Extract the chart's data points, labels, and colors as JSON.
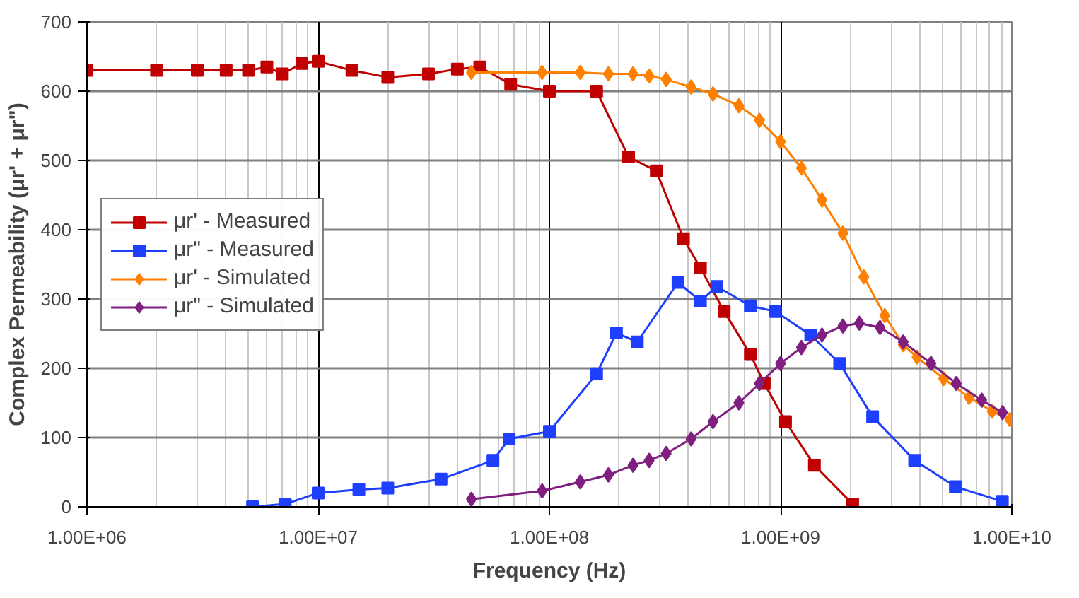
{
  "chart_data": {
    "type": "line",
    "xlabel": "Frequency (Hz)",
    "ylabel": "Complex Permeability (μr' + μr\")",
    "log": "x",
    "xlim": [
      1000000.0,
      10000000000.0
    ],
    "ylim": [
      0,
      700
    ],
    "xticks": [
      {
        "value": 1000000.0,
        "label": "1.00E+06"
      },
      {
        "value": 10000000.0,
        "label": "1.00E+07"
      },
      {
        "value": 100000000.0,
        "label": "1.00E+08"
      },
      {
        "value": 1000000000.0,
        "label": "1.00E+09"
      },
      {
        "value": 10000000000.0,
        "label": "1.00E+10"
      }
    ],
    "yticks": [
      0,
      100,
      200,
      300,
      400,
      500,
      600,
      700
    ],
    "grid": true,
    "legend": "left",
    "series": [
      {
        "name": "μr' - Measured",
        "color": "#c00000",
        "marker": "square",
        "x": [
          1000000.0,
          2000000.0,
          3000000.0,
          4000000.0,
          5000000.0,
          6000000.0,
          7000000.0,
          8500000.0,
          10000000.0,
          14000000.0,
          20000000.0,
          30000000.0,
          40000000.0,
          50000000.0,
          68000000.0,
          100000000.0,
          160000000.0,
          220000000.0,
          290000000.0,
          380000000.0,
          450000000.0,
          570000000.0,
          740000000.0,
          850000000.0,
          1050000000.0,
          1400000000.0,
          2050000000.0
        ],
        "values": [
          630,
          630,
          630,
          630,
          630,
          635,
          625,
          640,
          643,
          630,
          620,
          625,
          632,
          635,
          610,
          600,
          600,
          505,
          485,
          387,
          345,
          282,
          220,
          178,
          123,
          60,
          4
        ]
      },
      {
        "name": "μr\" - Measured",
        "color": "#1f3fff",
        "marker": "square",
        "x": [
          5200000.0,
          7200000.0,
          10000000.0,
          15000000.0,
          20000000.0,
          34000000.0,
          57000000.0,
          67000000.0,
          100000000.0,
          160000000.0,
          195000000.0,
          240000000.0,
          360000000.0,
          450000000.0,
          530000000.0,
          740000000.0,
          950000000.0,
          1350000000.0,
          1800000000.0,
          2500000000.0,
          3800000000.0,
          5700000000.0,
          9100000000.0
        ],
        "values": [
          0,
          4,
          20,
          25,
          27,
          40,
          67,
          98,
          109,
          192,
          251,
          238,
          324,
          297,
          318,
          290,
          282,
          248,
          207,
          130,
          67,
          29,
          8
        ]
      },
      {
        "name": "μr' - Simulated",
        "color": "#ff8000",
        "marker": "diamond",
        "x": [
          46000000.0,
          93000000.0,
          136000000.0,
          180000000.0,
          230000000.0,
          270000000.0,
          320000000.0,
          410000000.0,
          510000000.0,
          660000000.0,
          810000000.0,
          1000000000.0,
          1230000000.0,
          1510000000.0,
          1860000000.0,
          2290000000.0,
          2820000000.0,
          3390000000.0,
          3890000000.0,
          5070000000.0,
          6530000000.0,
          8220000000.0,
          9800000000.0
        ],
        "values": [
          627,
          627,
          627,
          625,
          625,
          622,
          617,
          606,
          596,
          579,
          558,
          527,
          489,
          443,
          395,
          332,
          276,
          234,
          216,
          185,
          158,
          138,
          126
        ]
      },
      {
        "name": "μr\" - Simulated",
        "color": "#7f1f7f",
        "marker": "diamond",
        "x": [
          46000000.0,
          93000000.0,
          136000000.0,
          180000000.0,
          230000000.0,
          270000000.0,
          320000000.0,
          410000000.0,
          510000000.0,
          660000000.0,
          810000000.0,
          1000000000.0,
          1230000000.0,
          1510000000.0,
          1860000000.0,
          2190000000.0,
          2690000000.0,
          3390000000.0,
          4470000000.0,
          5750000000.0,
          7410000000.0,
          9120000000.0
        ],
        "values": [
          11,
          23,
          36,
          46,
          60,
          67,
          77,
          98,
          123,
          150,
          178,
          207,
          230,
          248,
          261,
          265,
          259,
          238,
          207,
          178,
          154,
          136
        ]
      }
    ]
  }
}
